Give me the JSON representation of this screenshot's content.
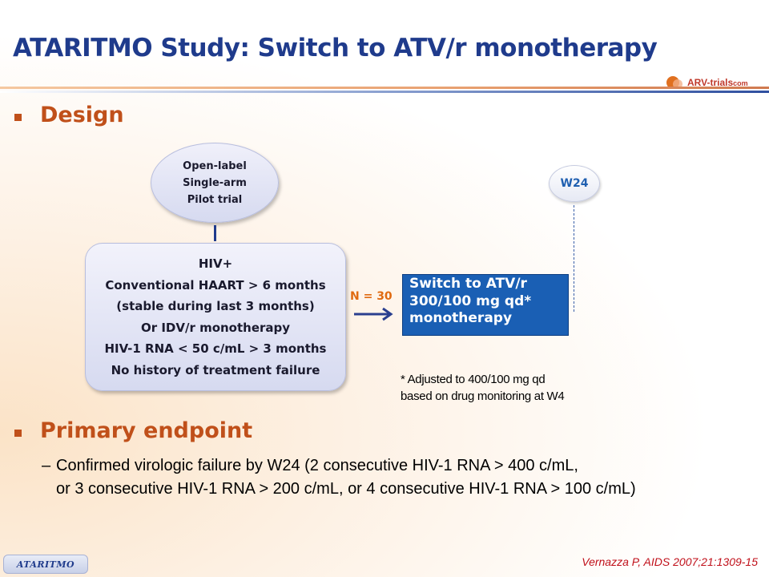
{
  "title": "ATARITMO Study: Switch to ATV/r monotherapy",
  "logo": {
    "main": "ARV-trials",
    "suffix": "com"
  },
  "sections": {
    "design": "Design",
    "primary_endpoint": "Primary endpoint"
  },
  "design_ellipse": [
    "Open-label",
    "Single-arm",
    "Pilot trial"
  ],
  "criteria": [
    "HIV+",
    "Conventional HAART > 6 months",
    "(stable during last 3 months)",
    "Or IDV/r monotherapy",
    "HIV-1 RNA < 50 c/mL > 3 months",
    "No history of treatment failure"
  ],
  "n_label": "N = 30",
  "switch_box": [
    "Switch to ATV/r",
    "300/100 mg qd*",
    "monotherapy"
  ],
  "timepoint": "W24",
  "footnote": [
    "* Adjusted to 400/100 mg qd",
    "based on drug monitoring at W4"
  ],
  "endpoint": {
    "dash": "–",
    "line1": "Confirmed virologic failure by W24 (2 consecutive HIV-1 RNA > 400 c/mL,",
    "line2": "or 3 consecutive HIV-1 RNA > 200 c/mL, or 4 consecutive HIV-1 RNA > 100 c/mL)"
  },
  "tag": "ATARITMO",
  "citation": "Vernazza P, AIDS 2007;21:1309-15",
  "colors": {
    "title": "#1f3b8c",
    "accent": "#c0501a",
    "box": "#1a5fb4",
    "n_label": "#e06a10",
    "citation": "#c0101a"
  }
}
